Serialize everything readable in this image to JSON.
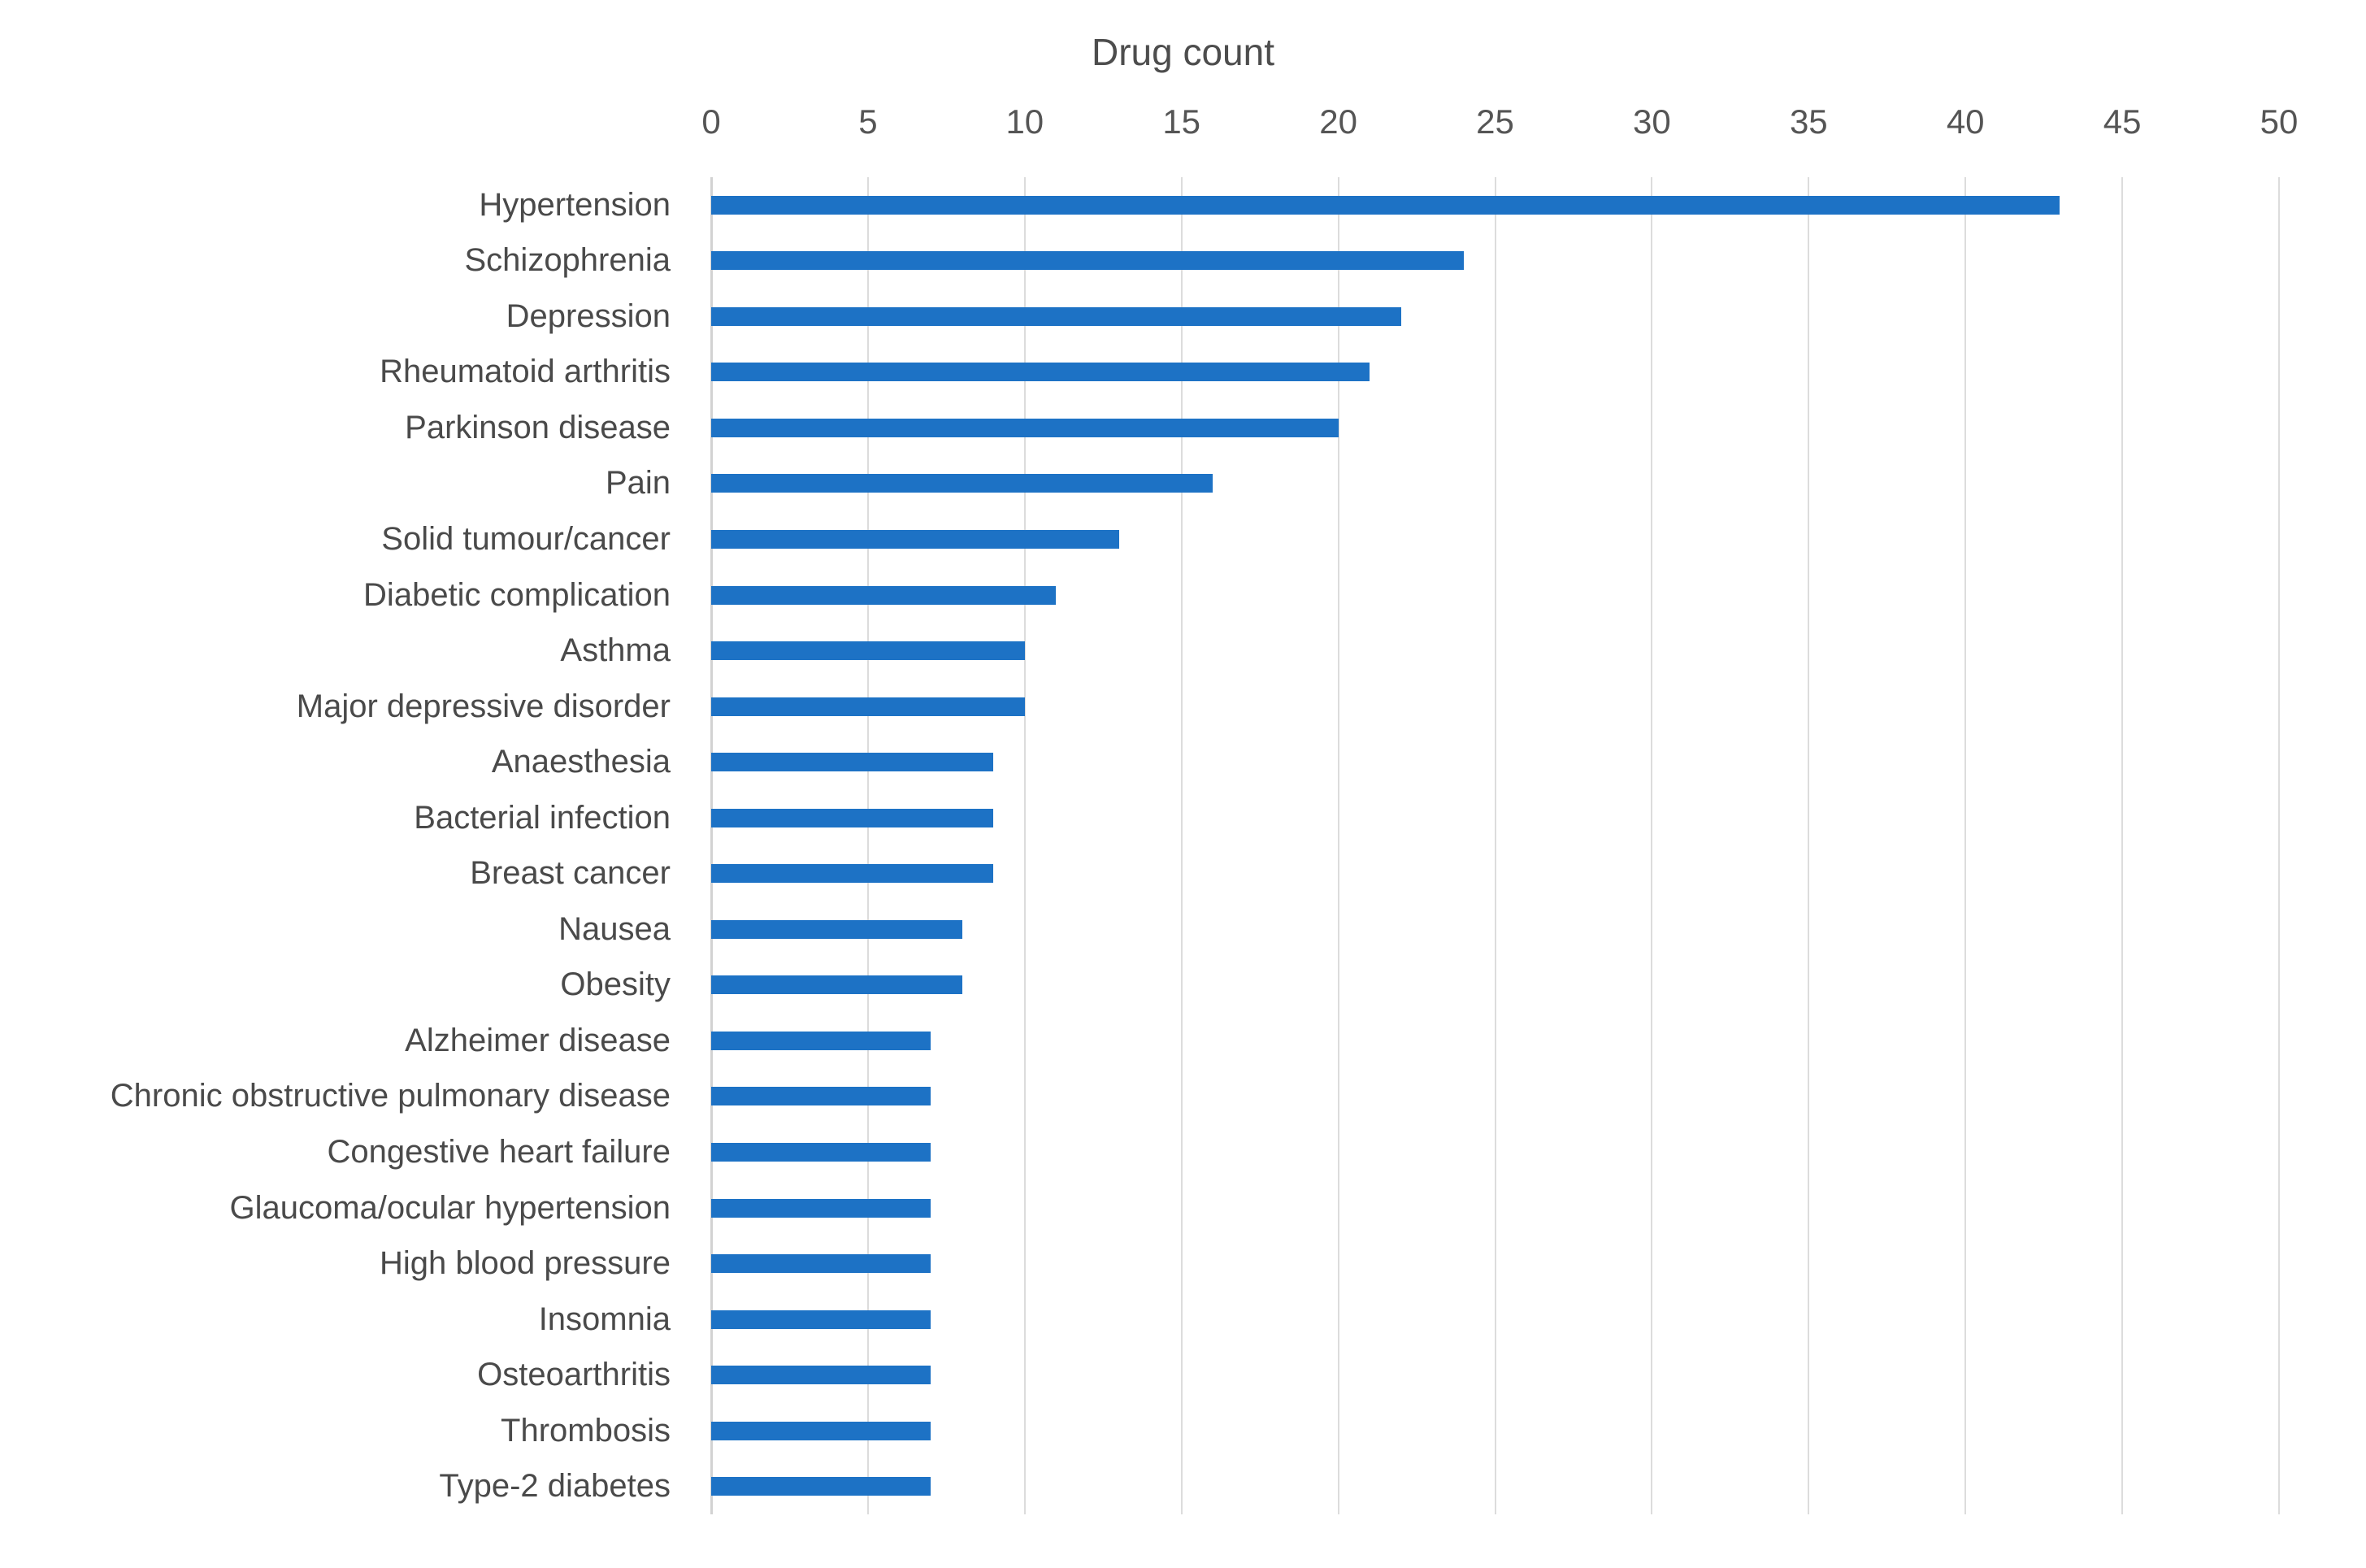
{
  "chart_data": {
    "type": "bar",
    "orientation": "horizontal",
    "title": "Drug count",
    "categories": [
      "Hypertension",
      "Schizophrenia",
      "Depression",
      "Rheumatoid arthritis",
      "Parkinson disease",
      "Pain",
      "Solid tumour/cancer",
      "Diabetic complication",
      "Asthma",
      "Major depressive disorder",
      "Anaesthesia",
      "Bacterial infection",
      "Breast cancer",
      "Nausea",
      "Obesity",
      "Alzheimer disease",
      "Chronic obstructive pulmonary disease",
      "Congestive heart failure",
      "Glaucoma/ocular hypertension",
      "High blood pressure",
      "Insomnia",
      "Osteoarthritis",
      "Thrombosis",
      "Type-2 diabetes"
    ],
    "values": [
      43,
      24,
      22,
      21,
      20,
      16,
      13,
      11,
      10,
      10,
      9,
      9,
      9,
      8,
      8,
      7,
      7,
      7,
      7,
      7,
      7,
      7,
      7,
      7
    ],
    "xlabel": "",
    "ylabel": "",
    "xlim": [
      0,
      50
    ],
    "x_ticks": [
      0,
      5,
      10,
      15,
      20,
      25,
      30,
      35,
      40,
      45,
      50
    ],
    "grid": true,
    "legend": false,
    "bar_color": "#1d72c5",
    "gridline_color": "#dcdcdc",
    "text_color": "#4a4a4a",
    "background_color": "#ffffff"
  }
}
